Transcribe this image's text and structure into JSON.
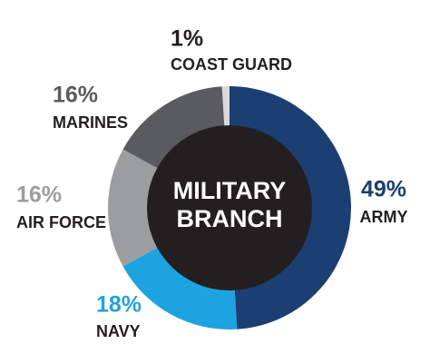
{
  "chart_data": {
    "type": "donut",
    "center_label": [
      "MILITARY",
      "BRANCH"
    ],
    "categories": [
      "ARMY",
      "NAVY",
      "AIR FORCE",
      "MARINES",
      "COAST GUARD"
    ],
    "values": [
      49,
      18,
      16,
      16,
      1
    ],
    "value_labels": [
      "49%",
      "18%",
      "16%",
      "16%",
      "1%"
    ],
    "colors": [
      "#1b3f73",
      "#1ea3e1",
      "#9c9d9f",
      "#5a5b5d",
      "#dadada"
    ],
    "label_colors": [
      "#1b3f73",
      "#1ea3e1",
      "#9c9d9f",
      "#5a5b5d",
      "#231f20"
    ]
  }
}
